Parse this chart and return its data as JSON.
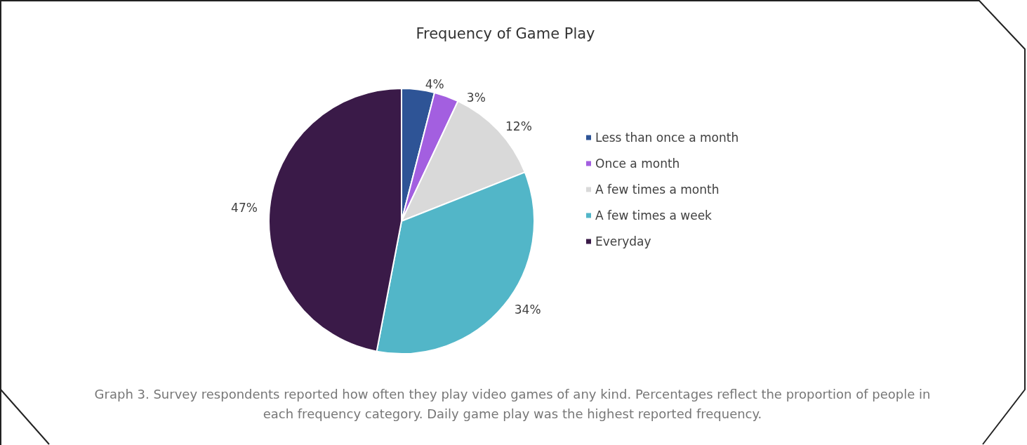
{
  "chart_data": {
    "type": "pie",
    "title": "Frequency of Game Play",
    "categories": [
      "Less than once a month",
      "Once a month",
      "A few times a month",
      "A few times a week",
      "Everyday"
    ],
    "values": [
      4,
      3,
      12,
      34,
      47
    ],
    "colors": [
      "#2e5496",
      "#a35fe0",
      "#d9d9d9",
      "#52b6c8",
      "#3a1a48"
    ],
    "value_labels": [
      "4%",
      "3%",
      "12%",
      "34%",
      "47%"
    ],
    "legend": "right",
    "annotations": [
      "Graph 3. Survey respondents reported how often they play video games of any kind. Percentages reflect the proportion of people in each frequency category. Daily game play was the highest reported frequency."
    ]
  }
}
